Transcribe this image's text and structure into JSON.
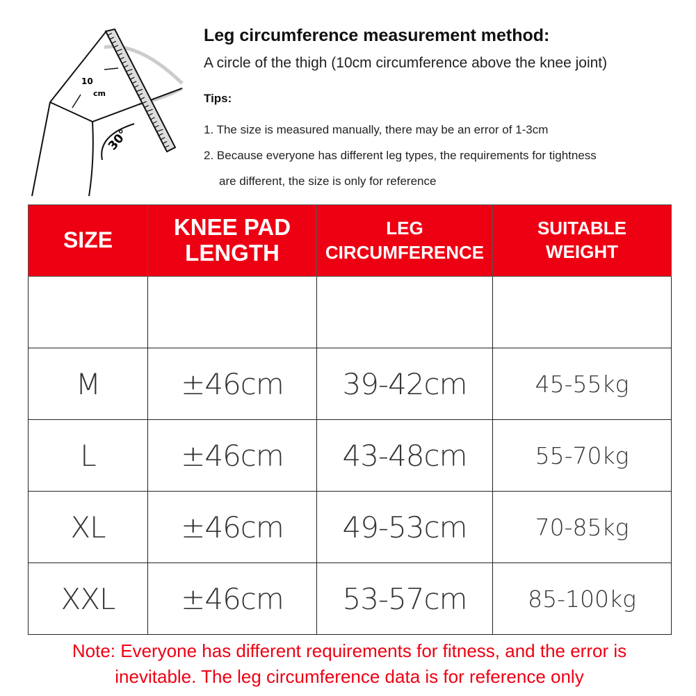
{
  "illustration": {
    "length_label": "10",
    "unit_label": "cm",
    "angle_label": "30°"
  },
  "header": {
    "title": "Leg circumference measurement method:",
    "subtitle": "A circle of the thigh (10cm circumference above the knee joint)",
    "tips_label": "Tips:",
    "tips": [
      "1. The size is measured manually, there may be an error of 1-3cm",
      "2. Because everyone has different leg types, the requirements for tightness",
      "are different, the size is only for reference"
    ]
  },
  "table": {
    "header_color": "#ee0013",
    "columns": [
      {
        "line1": "SIZE",
        "line2": ""
      },
      {
        "line1": "KNEE PAD",
        "line2": "LENGTH"
      },
      {
        "line1": "LEG",
        "line2": "CIRCUMFERENCE"
      },
      {
        "line1": "SUITABLE",
        "line2": "WEIGHT"
      }
    ],
    "rows": [
      [
        "",
        "",
        "",
        ""
      ],
      [
        "M",
        "±46cm",
        "39-42cm",
        "45-55kg"
      ],
      [
        "L",
        "±46cm",
        "43-48cm",
        "55-70kg"
      ],
      [
        "XL",
        "±46cm",
        "49-53cm",
        "70-85kg"
      ],
      [
        "XXL",
        "±46cm",
        "53-57cm",
        "85-100kg"
      ]
    ]
  },
  "note": {
    "line1": "Note: Everyone has different requirements for fitness, and the error is",
    "line2": "inevitable. The leg circumference data is for reference only",
    "color": "#ee0013"
  }
}
